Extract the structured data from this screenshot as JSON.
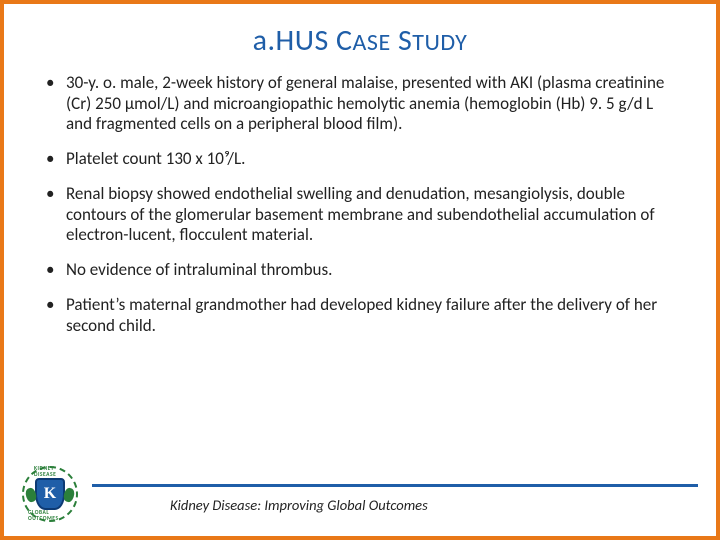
{
  "title": {
    "pre": "a.HUS ",
    "w1a": "C",
    "w1b": "ASE",
    "sp": " ",
    "w2a": "S",
    "w2b": "TUDY"
  },
  "bullets": [
    "30-y. o. male, 2-week history of general malaise, presented with AKI (plasma creatinine (Cr) 250 μmol/L) and microangiopathic hemolytic anemia (hemoglobin (Hb) 9. 5 g/d L and fragmented cells on a peripheral blood film).",
    "Platelet count 130 x 10⁹/L.",
    "Renal biopsy showed endothelial swelling and denudation, mesangiolysis, double contours of the glomerular basement membrane and subendothelial accumulation of electron-lucent, flocculent material.",
    "No evidence of intraluminal thrombus.",
    "Patient’s maternal grandmother had developed kidney failure after the delivery of her second child."
  ],
  "footer": {
    "org": "Kidney Disease: Improving Global Outcomes",
    "logo_letter": "K",
    "ring_top": "KIDNEY DISEASE",
    "ring_bottom": "GLOBAL OUTCOMES"
  },
  "colors": {
    "border": "#e97817",
    "heading": "#1f5ea8",
    "rule": "#1f5ea8",
    "text": "#222222",
    "logo_green": "#2b7f3a",
    "logo_blue": "#1f5ea8"
  }
}
